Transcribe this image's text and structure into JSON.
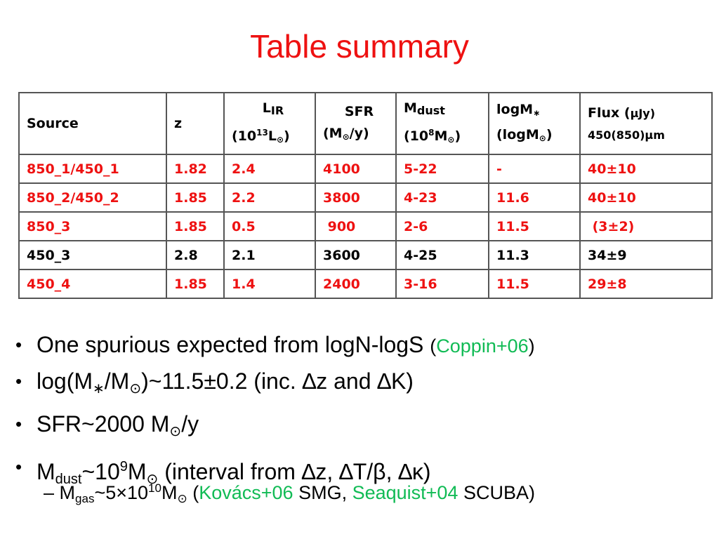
{
  "title": "Table summary",
  "table": {
    "headers": {
      "source": "Source",
      "z": "z",
      "lir_sym": "L",
      "lir_sub": "IR",
      "lir_unit_a": "(10",
      "lir_unit_sup": "13",
      "lir_unit_b": "L",
      "lir_unit_sub": "⊙",
      "lir_unit_c": ")",
      "sfr": "SFR",
      "sfr_unit_a": "(M",
      "sfr_unit_sub": "⊙",
      "sfr_unit_b": "/y)",
      "mdust_sym": "M",
      "mdust_sub": "dust",
      "mdust_unit_a": "(10",
      "mdust_unit_sup": "8",
      "mdust_unit_b": "M",
      "mdust_unit_sub": "⊙",
      "mdust_unit_c": ")",
      "logm_sym": "logM",
      "logm_sub": "∗",
      "logm_unit_a": "(logM",
      "logm_unit_sub": "⊙",
      "logm_unit_b": ")",
      "flux_a": "Flux (",
      "flux_b": "μJy",
      "flux_c": ")",
      "flux_bands": "450(850)μm"
    },
    "rows": [
      {
        "source": "850_1/450_1",
        "z": "1.82",
        "lir": "2.4",
        "sfr": "4100",
        "mdust": "5-22",
        "logm": "-",
        "flux": "40±10",
        "color": "#ee1111"
      },
      {
        "source": "850_2/450_2",
        "z": "1.85",
        "lir": "2.2",
        "sfr": "3800",
        "mdust": "4-23",
        "logm": "11.6",
        "flux": "40±10",
        "color": "#ee1111"
      },
      {
        "source": "850_3",
        "z": "1.85",
        "lir": "0.5",
        "sfr": " 900",
        "mdust": "2-6",
        "logm": "11.5",
        "flux": " (3±2)",
        "color": "#ee1111"
      },
      {
        "source": "450_3",
        "z": "2.8",
        "lir": "2.1",
        "sfr": "3600",
        "mdust": "4-25",
        "logm": "11.3",
        "flux": "34±9",
        "color": "#000000"
      },
      {
        "source": "450_4",
        "z": "1.85",
        "lir": "1.4",
        "sfr": "2400",
        "mdust": "3-16",
        "logm": "11.5",
        "flux": "29±8",
        "color": "#ee1111"
      }
    ]
  },
  "bullets": {
    "b1_text": "One spurious expected from logN-logS ",
    "b1_paren_open": "(",
    "b1_cite": "Coppin+06",
    "b1_paren_close": ")",
    "b2_a": "log(M",
    "b2_sub1": "∗",
    "b2_b": "/M",
    "b2_sub2": "⊙",
    "b2_c": ")~11.5±0.2 (inc. ∆z and ∆K)",
    "b3_a": "SFR~2000 M",
    "b3_sub": "⊙",
    "b3_b": "/y",
    "b4_a": "M",
    "b4_sub": "dust",
    "b4_b": "~10",
    "b4_sup": "9",
    "b4_c": "M",
    "b4_sub2": "⊙",
    "b4_d": " (interval from ∆z, ∆T/β, ∆κ)",
    "sub_dash": "– ",
    "sub_a": "M",
    "sub_sub": "gas",
    "sub_b": "~5×10",
    "sub_sup": "10",
    "sub_c": "M",
    "sub_sub2": "⊙",
    "sub_d": " (",
    "sub_cite1": "Kovács+06",
    "sub_e": " SMG, ",
    "sub_cite2": "Seaquist+04",
    "sub_f": " SCUBA)"
  },
  "colors": {
    "title": "#ee1111",
    "highlight": "#ee1111",
    "citation": "#11bb55"
  }
}
